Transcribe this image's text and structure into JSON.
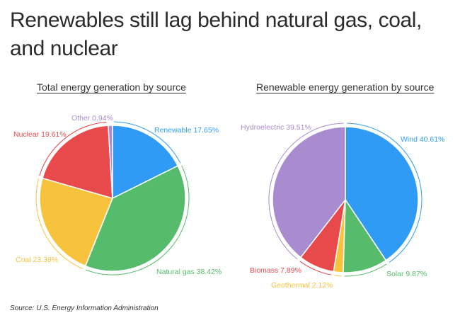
{
  "page": {
    "title": "Renewables still lag behind natural gas, coal, and nuclear",
    "source": "Source: U.S. Energy Information Administration"
  },
  "chart_data": [
    {
      "type": "pie",
      "title": "Total energy generation by source",
      "slices": [
        {
          "label": "Renewable",
          "value": 17.65,
          "display": "Renewable 17.65%",
          "color": "#2f9bf4"
        },
        {
          "label": "Natural gas",
          "value": 38.42,
          "display": "Natural gas 38.42%",
          "color": "#56bc6b"
        },
        {
          "label": "Coal",
          "value": 23.38,
          "display": "Coal 23.38%",
          "color": "#f7c33d"
        },
        {
          "label": "Nuclear",
          "value": 19.61,
          "display": "Nuclear 19.61%",
          "color": "#e84a4c"
        },
        {
          "label": "Other",
          "value": 0.94,
          "display": "Other 0.94%",
          "color": "#a98bcf"
        }
      ]
    },
    {
      "type": "pie",
      "title": "Renewable energy generation by source",
      "slices": [
        {
          "label": "Wind",
          "value": 40.61,
          "display": "Wind 40.61%",
          "color": "#2f9bf4"
        },
        {
          "label": "Solar",
          "value": 9.87,
          "display": "Solar 9.87%",
          "color": "#56bc6b"
        },
        {
          "label": "Geothermal",
          "value": 2.12,
          "display": "Geothermal 2.12%",
          "color": "#f7c33d"
        },
        {
          "label": "Biomass",
          "value": 7.89,
          "display": "Biomass 7.89%",
          "color": "#e84a4c"
        },
        {
          "label": "Hydroelectric",
          "value": 39.51,
          "display": "Hydroelectric 39.51%",
          "color": "#a98bcf"
        }
      ]
    }
  ]
}
